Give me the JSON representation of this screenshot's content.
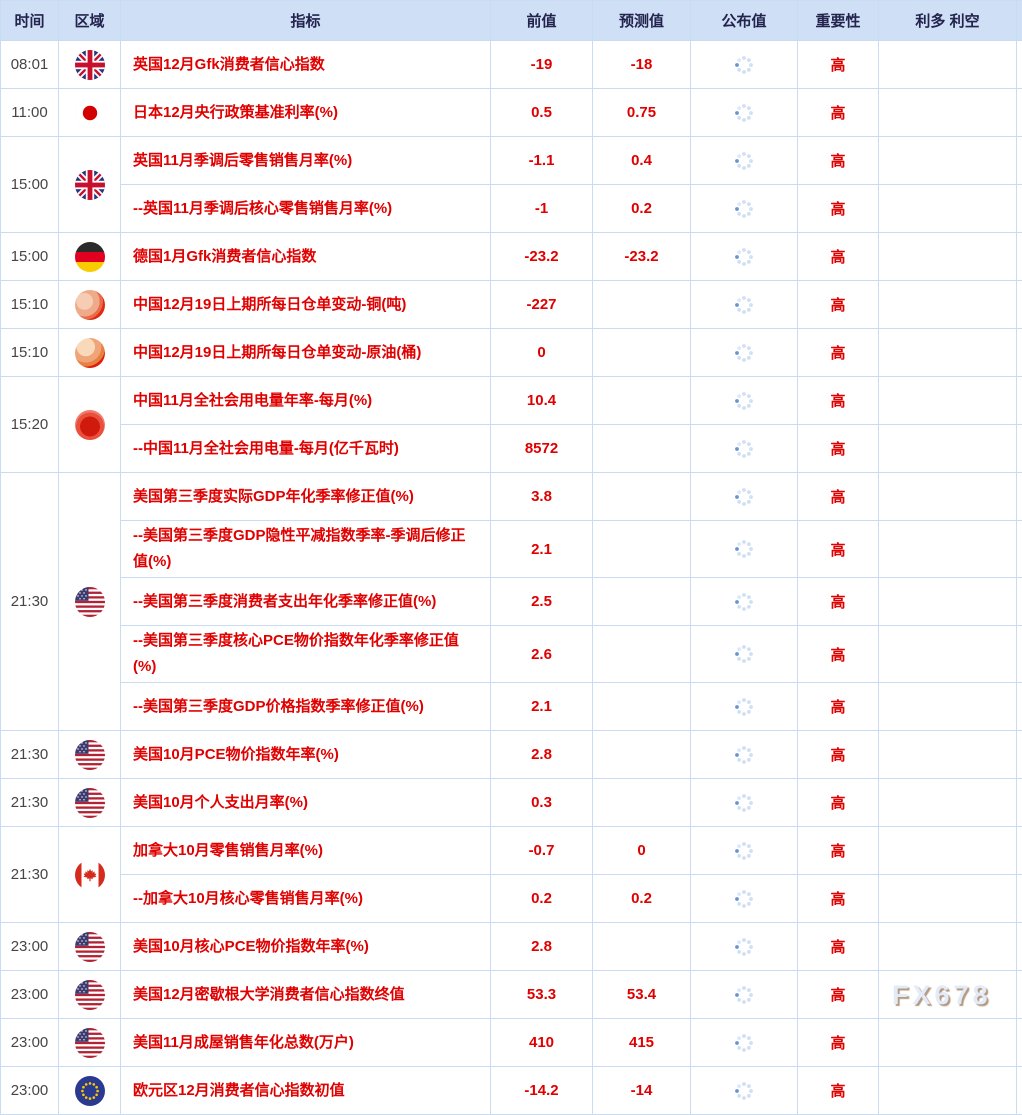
{
  "watermark": "FX678",
  "columns": {
    "time": "时间",
    "region": "区域",
    "indicator": "指标",
    "previous": "前值",
    "forecast": "预测值",
    "published": "公布值",
    "importance": "重要性",
    "sentiment": "利多 利空"
  },
  "published_state": "loading-spinner",
  "colors": {
    "header_bg": "#cfe0f6",
    "grid_line": "#c9dcf2",
    "indicator_red": "#e00000",
    "time_text": "#454545",
    "header_text": "#23234e",
    "spinner_light": "#cfdff4",
    "spinner_dark": "#6496d2"
  },
  "groups": [
    {
      "time": "08:01",
      "flag": "uk-flag",
      "rows": [
        {
          "indicator": "英国12月Gfk消费者信心指数",
          "previous": "-19",
          "forecast": "-18",
          "importance": "高"
        }
      ]
    },
    {
      "time": "11:00",
      "flag": "japan-flag",
      "rows": [
        {
          "indicator": "日本12月央行政策基准利率(%)",
          "previous": "0.5",
          "forecast": "0.75",
          "importance": "高"
        }
      ]
    },
    {
      "time": "15:00",
      "flag": "uk-flag",
      "rows": [
        {
          "indicator": "英国11月季调后零售销售月率(%)",
          "previous": "-1.1",
          "forecast": "0.4",
          "importance": "高"
        },
        {
          "indicator": "--英国11月季调后核心零售销售月率(%)",
          "previous": "-1",
          "forecast": "0.2",
          "importance": "高"
        }
      ]
    },
    {
      "time": "15:00",
      "flag": "germany-flag",
      "rows": [
        {
          "indicator": "德国1月Gfk消费者信心指数",
          "previous": "-23.2",
          "forecast": "-23.2",
          "importance": "高"
        }
      ]
    },
    {
      "time": "15:10",
      "flag": "china-flag-blur-1",
      "rows": [
        {
          "indicator": "中国12月19日上期所每日仓单变动-铜(吨)",
          "previous": "-227",
          "forecast": "",
          "importance": "高"
        }
      ]
    },
    {
      "time": "15:10",
      "flag": "china-flag-blur-2",
      "rows": [
        {
          "indicator": "中国12月19日上期所每日仓单变动-原油(桶)",
          "previous": "0",
          "forecast": "",
          "importance": "高"
        }
      ]
    },
    {
      "time": "15:20",
      "flag": "china-flag-blur-3",
      "rows": [
        {
          "indicator": "中国11月全社会用电量年率-每月(%)",
          "previous": "10.4",
          "forecast": "",
          "importance": "高"
        },
        {
          "indicator": "--中国11月全社会用电量-每月(亿千瓦时)",
          "previous": "8572",
          "forecast": "",
          "importance": "高"
        }
      ]
    },
    {
      "time": "21:30",
      "flag": "us-flag",
      "rows": [
        {
          "indicator": "美国第三季度实际GDP年化季率修正值(%)",
          "previous": "3.8",
          "forecast": "",
          "importance": "高"
        },
        {
          "indicator": "--美国第三季度GDP隐性平减指数季率-季调后修正值(%)",
          "previous": "2.1",
          "forecast": "",
          "importance": "高"
        },
        {
          "indicator": "--美国第三季度消费者支出年化季率修正值(%)",
          "previous": "2.5",
          "forecast": "",
          "importance": "高"
        },
        {
          "indicator": "--美国第三季度核心PCE物价指数年化季率修正值(%)",
          "previous": "2.6",
          "forecast": "",
          "importance": "高"
        },
        {
          "indicator": "--美国第三季度GDP价格指数季率修正值(%)",
          "previous": "2.1",
          "forecast": "",
          "importance": "高"
        }
      ]
    },
    {
      "time": "21:30",
      "flag": "us-flag",
      "rows": [
        {
          "indicator": "美国10月PCE物价指数年率(%)",
          "previous": "2.8",
          "forecast": "",
          "importance": "高"
        }
      ]
    },
    {
      "time": "21:30",
      "flag": "us-flag",
      "rows": [
        {
          "indicator": "美国10月个人支出月率(%)",
          "previous": "0.3",
          "forecast": "",
          "importance": "高"
        }
      ]
    },
    {
      "time": "21:30",
      "flag": "canada-flag",
      "rows": [
        {
          "indicator": "加拿大10月零售销售月率(%)",
          "previous": "-0.7",
          "forecast": "0",
          "importance": "高"
        },
        {
          "indicator": "--加拿大10月核心零售销售月率(%)",
          "previous": "0.2",
          "forecast": "0.2",
          "importance": "高"
        }
      ]
    },
    {
      "time": "23:00",
      "flag": "us-flag",
      "rows": [
        {
          "indicator": "美国10月核心PCE物价指数年率(%)",
          "previous": "2.8",
          "forecast": "",
          "importance": "高"
        }
      ]
    },
    {
      "time": "23:00",
      "flag": "us-flag",
      "rows": [
        {
          "indicator": "美国12月密歇根大学消费者信心指数终值",
          "previous": "53.3",
          "forecast": "53.4",
          "importance": "高"
        }
      ]
    },
    {
      "time": "23:00",
      "flag": "us-flag",
      "rows": [
        {
          "indicator": "美国11月成屋销售年化总数(万户)",
          "previous": "410",
          "forecast": "415",
          "importance": "高"
        }
      ]
    },
    {
      "time": "23:00",
      "flag": "eu-flag",
      "rows": [
        {
          "indicator": "欧元区12月消费者信心指数初值",
          "previous": "-14.2",
          "forecast": "-14",
          "importance": "高"
        }
      ]
    }
  ]
}
